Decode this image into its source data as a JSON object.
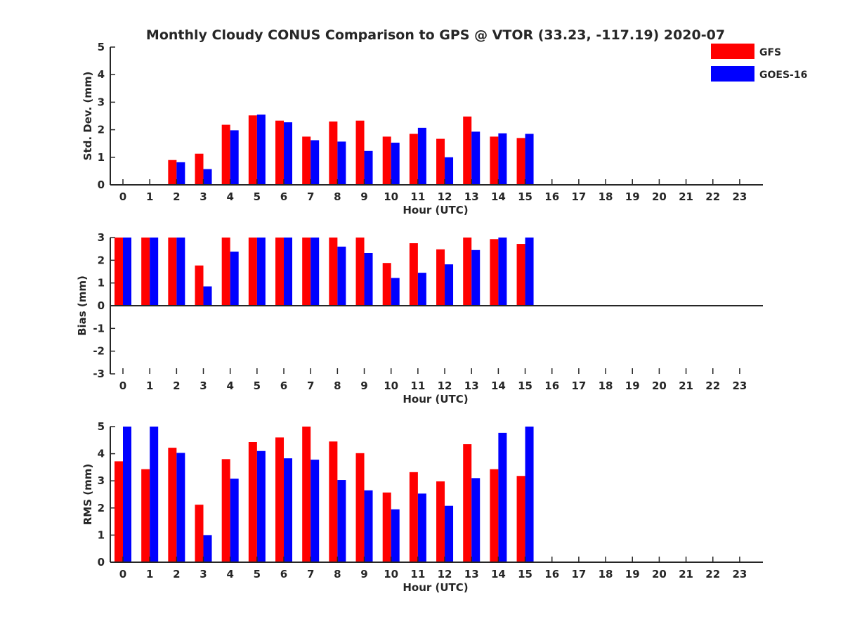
{
  "title": "Monthly Cloudy CONUS Comparison to GPS @ VTOR (33.23, -117.19) 2020-07",
  "legend": {
    "placement": "top-right",
    "entries": [
      {
        "label": "GFS",
        "color": "#ff0000"
      },
      {
        "label": "GOES-16",
        "color": "#0000ff"
      }
    ]
  },
  "chart_data": [
    {
      "type": "bar",
      "ylabel": "Std. Dev. (mm)",
      "xlabel": "Hour (UTC)",
      "ylim": [
        0,
        5
      ],
      "yticks": [
        0,
        1,
        2,
        3,
        4,
        5
      ],
      "categories": [
        0,
        1,
        2,
        3,
        4,
        5,
        6,
        7,
        8,
        9,
        10,
        11,
        12,
        13,
        14,
        15,
        16,
        17,
        18,
        19,
        20,
        21,
        22,
        23
      ],
      "series": [
        {
          "name": "GFS",
          "color": "#ff0000",
          "values": [
            null,
            null,
            0.9,
            1.13,
            2.18,
            2.52,
            2.33,
            1.75,
            2.3,
            2.33,
            1.75,
            1.85,
            1.67,
            2.48,
            1.75,
            1.7,
            null,
            null,
            null,
            null,
            null,
            null,
            null,
            null
          ]
        },
        {
          "name": "GOES-16",
          "color": "#0000ff",
          "values": [
            null,
            null,
            0.82,
            0.57,
            1.98,
            2.55,
            2.27,
            1.62,
            1.57,
            1.23,
            1.53,
            2.07,
            1.0,
            1.93,
            1.87,
            1.85,
            null,
            null,
            null,
            null,
            null,
            null,
            null,
            null
          ]
        }
      ]
    },
    {
      "type": "bar",
      "ylabel": "Bias (mm)",
      "xlabel": "Hour (UTC)",
      "ylim": [
        -3,
        3
      ],
      "yticks": [
        -3,
        -2,
        -1,
        0,
        1,
        2,
        3
      ],
      "categories": [
        0,
        1,
        2,
        3,
        4,
        5,
        6,
        7,
        8,
        9,
        10,
        11,
        12,
        13,
        14,
        15,
        16,
        17,
        18,
        19,
        20,
        21,
        22,
        23
      ],
      "series": [
        {
          "name": "GFS",
          "color": "#ff0000",
          "values": [
            3,
            3,
            3,
            1.77,
            3,
            3,
            3,
            3,
            3,
            3,
            1.88,
            2.75,
            2.48,
            3,
            2.93,
            2.72,
            null,
            null,
            null,
            null,
            null,
            null,
            null,
            null
          ]
        },
        {
          "name": "GOES-16",
          "color": "#0000ff",
          "values": [
            3,
            3,
            3,
            0.85,
            2.38,
            3,
            3,
            3,
            2.6,
            2.32,
            1.22,
            1.45,
            1.82,
            2.45,
            3,
            3,
            null,
            null,
            null,
            null,
            null,
            null,
            null,
            null
          ]
        }
      ]
    },
    {
      "type": "bar",
      "ylabel": "RMS (mm)",
      "xlabel": "Hour (UTC)",
      "ylim": [
        0,
        5
      ],
      "yticks": [
        0,
        1,
        2,
        3,
        4,
        5
      ],
      "categories": [
        0,
        1,
        2,
        3,
        4,
        5,
        6,
        7,
        8,
        9,
        10,
        11,
        12,
        13,
        14,
        15,
        16,
        17,
        18,
        19,
        20,
        21,
        22,
        23
      ],
      "series": [
        {
          "name": "GFS",
          "color": "#ff0000",
          "values": [
            3.72,
            3.43,
            4.22,
            2.12,
            3.8,
            4.43,
            4.6,
            5,
            4.45,
            4.02,
            2.57,
            3.32,
            2.98,
            4.35,
            3.43,
            3.18,
            null,
            null,
            null,
            null,
            null,
            null,
            null,
            null
          ]
        },
        {
          "name": "GOES-16",
          "color": "#0000ff",
          "values": [
            5,
            5,
            4.03,
            1.0,
            3.08,
            4.1,
            3.83,
            3.78,
            3.03,
            2.65,
            1.95,
            2.53,
            2.08,
            3.1,
            4.77,
            5,
            null,
            null,
            null,
            null,
            null,
            null,
            null,
            null
          ]
        }
      ]
    }
  ]
}
